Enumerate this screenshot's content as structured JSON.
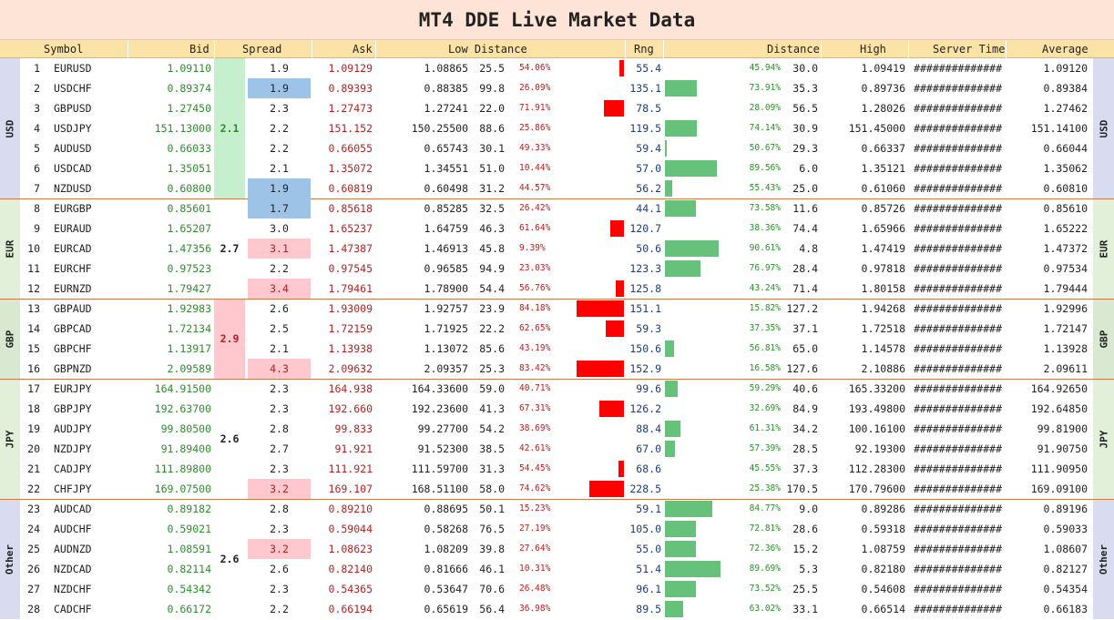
{
  "title": "MT4 DDE Live Market Data",
  "headers": {
    "symbol": "Symbol",
    "bid": "Bid",
    "spread": "Spread",
    "ask": "Ask",
    "low_distance": "Low Distance",
    "rng": "Rng",
    "distance": "Distance",
    "high": "High",
    "server_time": "Server Time",
    "average": "Average"
  },
  "colors": {
    "title_bg": "#fde4d6",
    "header_bg": "#fbe3a7",
    "usd_bg": "#d9dcf1",
    "eur_bg": "#e2f0d9",
    "gbp_bg": "#d9e8d0",
    "jpy_bg": "#e2f0d9",
    "other_bg": "#d9dcf1",
    "spread_green": "#c6efce",
    "spread_blue": "#9dc3e6",
    "spread_pink": "#ffc7ce",
    "bar_red": "#ff0000",
    "bar_green": "#66c27a"
  },
  "groups": [
    {
      "name": "USD",
      "start": 0,
      "count": 7,
      "avg_spread": "2.1",
      "avg_highlight": "green"
    },
    {
      "name": "EUR",
      "start": 7,
      "count": 5,
      "avg_spread": "2.7",
      "avg_highlight": ""
    },
    {
      "name": "GBP",
      "start": 12,
      "count": 4,
      "avg_spread": "2.9",
      "avg_highlight": "pink"
    },
    {
      "name": "JPY",
      "start": 16,
      "count": 6,
      "avg_spread": "2.6",
      "avg_highlight": ""
    },
    {
      "name": "Other",
      "start": 22,
      "count": 6,
      "avg_spread": "2.6",
      "avg_highlight": ""
    }
  ],
  "rows": [
    {
      "n": "1",
      "sym": "EURUSD",
      "bid": "1.09110",
      "spread": "1.9",
      "hl": "",
      "ask": "1.09129",
      "low": "1.08865",
      "ldist": "25.5",
      "lpct": "54.06%",
      "lfrac": 0.1,
      "rng": "55.4",
      "hpct": "45.94%",
      "hfrac": 0,
      "hdist": "30.0",
      "high": "1.09419",
      "time": "##############",
      "avg": "1.09120"
    },
    {
      "n": "2",
      "sym": "USDCHF",
      "bid": "0.89374",
      "spread": "1.9",
      "hl": "blue",
      "ask": "0.89393",
      "low": "0.88385",
      "ldist": "99.8",
      "lpct": "26.09%",
      "lfrac": 0,
      "rng": "135.1",
      "hpct": "73.91%",
      "hfrac": 0.56,
      "hdist": "35.3",
      "high": "0.89736",
      "time": "##############",
      "avg": "0.89384"
    },
    {
      "n": "3",
      "sym": "GBPUSD",
      "bid": "1.27450",
      "spread": "2.3",
      "hl": "",
      "ask": "1.27473",
      "low": "1.27241",
      "ldist": "22.0",
      "lpct": "71.91%",
      "lfrac": 0.42,
      "rng": "78.5",
      "hpct": "28.09%",
      "hfrac": 0,
      "hdist": "56.5",
      "high": "1.28026",
      "time": "##############",
      "avg": "1.27462"
    },
    {
      "n": "4",
      "sym": "USDJPY",
      "bid": "151.13000",
      "spread": "2.2",
      "hl": "",
      "ask": "151.152",
      "low": "150.25500",
      "ldist": "88.6",
      "lpct": "25.86%",
      "lfrac": 0,
      "rng": "119.5",
      "hpct": "74.14%",
      "hfrac": 0.56,
      "hdist": "30.9",
      "high": "151.45000",
      "time": "##############",
      "avg": "151.14100"
    },
    {
      "n": "5",
      "sym": "AUDUSD",
      "bid": "0.66033",
      "spread": "2.2",
      "hl": "",
      "ask": "0.66055",
      "low": "0.65743",
      "ldist": "30.1",
      "lpct": "49.33%",
      "lfrac": 0,
      "rng": "59.4",
      "hpct": "50.67%",
      "hfrac": 0.02,
      "hdist": "29.3",
      "high": "0.66337",
      "time": "##############",
      "avg": "0.66044"
    },
    {
      "n": "6",
      "sym": "USDCAD",
      "bid": "1.35051",
      "spread": "2.1",
      "hl": "",
      "ask": "1.35072",
      "low": "1.34551",
      "ldist": "51.0",
      "lpct": "10.44%",
      "lfrac": 0,
      "rng": "57.0",
      "hpct": "89.56%",
      "hfrac": 0.92,
      "hdist": "6.0",
      "high": "1.35121",
      "time": "##############",
      "avg": "1.35062"
    },
    {
      "n": "7",
      "sym": "NZDUSD",
      "bid": "0.60800",
      "spread": "1.9",
      "hl": "blue",
      "ask": "0.60819",
      "low": "0.60498",
      "ldist": "31.2",
      "lpct": "44.57%",
      "lfrac": 0,
      "rng": "56.2",
      "hpct": "55.43%",
      "hfrac": 0.13,
      "hdist": "25.0",
      "high": "0.61060",
      "time": "##############",
      "avg": "0.60810"
    },
    {
      "n": "8",
      "sym": "EURGBP",
      "bid": "0.85601",
      "spread": "1.7",
      "hl": "blue",
      "ask": "0.85618",
      "low": "0.85285",
      "ldist": "32.5",
      "lpct": "26.42%",
      "lfrac": 0,
      "rng": "44.1",
      "hpct": "73.58%",
      "hfrac": 0.55,
      "hdist": "11.6",
      "high": "0.85726",
      "time": "##############",
      "avg": "0.85610"
    },
    {
      "n": "9",
      "sym": "EURAUD",
      "bid": "1.65207",
      "spread": "3.0",
      "hl": "",
      "ask": "1.65237",
      "low": "1.64759",
      "ldist": "46.3",
      "lpct": "61.64%",
      "lfrac": 0.29,
      "rng": "120.7",
      "hpct": "38.36%",
      "hfrac": 0,
      "hdist": "74.4",
      "high": "1.65966",
      "time": "##############",
      "avg": "1.65222"
    },
    {
      "n": "10",
      "sym": "EURCAD",
      "bid": "1.47356",
      "spread": "3.1",
      "hl": "pink",
      "ask": "1.47387",
      "low": "1.46913",
      "ldist": "45.8",
      "lpct": "9.39%",
      "lfrac": 0,
      "rng": "50.6",
      "hpct": "90.61%",
      "hfrac": 0.95,
      "hdist": "4.8",
      "high": "1.47419",
      "time": "##############",
      "avg": "1.47372"
    },
    {
      "n": "11",
      "sym": "EURCHF",
      "bid": "0.97523",
      "spread": "2.2",
      "hl": "",
      "ask": "0.97545",
      "low": "0.96585",
      "ldist": "94.9",
      "lpct": "23.03%",
      "lfrac": 0,
      "rng": "123.3",
      "hpct": "76.97%",
      "hfrac": 0.63,
      "hdist": "28.4",
      "high": "0.97818",
      "time": "##############",
      "avg": "0.97534"
    },
    {
      "n": "12",
      "sym": "EURNZD",
      "bid": "1.79427",
      "spread": "3.4",
      "hl": "pink",
      "ask": "1.79461",
      "low": "1.78900",
      "ldist": "54.4",
      "lpct": "56.76%",
      "lfrac": 0.17,
      "rng": "125.8",
      "hpct": "43.24%",
      "hfrac": 0,
      "hdist": "71.4",
      "high": "1.80158",
      "time": "##############",
      "avg": "1.79444"
    },
    {
      "n": "13",
      "sym": "GBPAUD",
      "bid": "1.92983",
      "spread": "2.6",
      "hl": "",
      "ask": "1.93009",
      "low": "1.92757",
      "ldist": "23.9",
      "lpct": "84.18%",
      "lfrac": 1.0,
      "rng": "151.1",
      "hpct": "15.82%",
      "hfrac": 0,
      "hdist": "127.2",
      "high": "1.94268",
      "time": "##############",
      "avg": "1.92996"
    },
    {
      "n": "14",
      "sym": "GBPCAD",
      "bid": "1.72134",
      "spread": "2.5",
      "hl": "",
      "ask": "1.72159",
      "low": "1.71925",
      "ldist": "22.2",
      "lpct": "62.65%",
      "lfrac": 0.38,
      "rng": "59.3",
      "hpct": "37.35%",
      "hfrac": 0,
      "hdist": "37.1",
      "high": "1.72518",
      "time": "##############",
      "avg": "1.72147"
    },
    {
      "n": "15",
      "sym": "GBPCHF",
      "bid": "1.13917",
      "spread": "2.1",
      "hl": "",
      "ask": "1.13938",
      "low": "1.13072",
      "ldist": "85.6",
      "lpct": "43.19%",
      "lfrac": 0,
      "rng": "150.6",
      "hpct": "56.81%",
      "hfrac": 0.16,
      "hdist": "65.0",
      "high": "1.14578",
      "time": "##############",
      "avg": "1.13928"
    },
    {
      "n": "16",
      "sym": "GBPNZD",
      "bid": "2.09589",
      "spread": "4.3",
      "hl": "pink",
      "ask": "2.09632",
      "low": "2.09357",
      "ldist": "25.3",
      "lpct": "83.42%",
      "lfrac": 1.0,
      "rng": "152.9",
      "hpct": "16.58%",
      "hfrac": 0,
      "hdist": "127.6",
      "high": "2.10886",
      "time": "##############",
      "avg": "2.09611"
    },
    {
      "n": "17",
      "sym": "EURJPY",
      "bid": "164.91500",
      "spread": "2.3",
      "hl": "",
      "ask": "164.938",
      "low": "164.33600",
      "ldist": "59.0",
      "lpct": "40.71%",
      "lfrac": 0,
      "rng": "99.6",
      "hpct": "59.29%",
      "hfrac": 0.23,
      "hdist": "40.6",
      "high": "165.33200",
      "time": "##############",
      "avg": "164.92650"
    },
    {
      "n": "18",
      "sym": "GBPJPY",
      "bid": "192.63700",
      "spread": "2.3",
      "hl": "",
      "ask": "192.660",
      "low": "192.23600",
      "ldist": "41.3",
      "lpct": "67.31%",
      "lfrac": 0.51,
      "rng": "126.2",
      "hpct": "32.69%",
      "hfrac": 0,
      "hdist": "84.9",
      "high": "193.49800",
      "time": "##############",
      "avg": "192.64850"
    },
    {
      "n": "19",
      "sym": "AUDJPY",
      "bid": "99.80500",
      "spread": "2.8",
      "hl": "",
      "ask": "99.833",
      "low": "99.27700",
      "ldist": "54.2",
      "lpct": "38.69%",
      "lfrac": 0,
      "rng": "88.4",
      "hpct": "61.31%",
      "hfrac": 0.28,
      "hdist": "34.2",
      "high": "100.16100",
      "time": "##############",
      "avg": "99.81900"
    },
    {
      "n": "20",
      "sym": "NZDJPY",
      "bid": "91.89400",
      "spread": "2.7",
      "hl": "",
      "ask": "91.921",
      "low": "91.52300",
      "ldist": "38.5",
      "lpct": "42.61%",
      "lfrac": 0,
      "rng": "67.0",
      "hpct": "57.39%",
      "hfrac": 0.18,
      "hdist": "28.5",
      "high": "92.19300",
      "time": "##############",
      "avg": "91.90750"
    },
    {
      "n": "21",
      "sym": "CADJPY",
      "bid": "111.89800",
      "spread": "2.3",
      "hl": "",
      "ask": "111.921",
      "low": "111.59700",
      "ldist": "31.3",
      "lpct": "54.45%",
      "lfrac": 0.12,
      "rng": "68.6",
      "hpct": "45.55%",
      "hfrac": 0,
      "hdist": "37.3",
      "high": "112.28300",
      "time": "##############",
      "avg": "111.90950"
    },
    {
      "n": "22",
      "sym": "CHFJPY",
      "bid": "169.07500",
      "spread": "3.2",
      "hl": "pink",
      "ask": "169.107",
      "low": "168.51100",
      "ldist": "58.0",
      "lpct": "74.62%",
      "lfrac": 0.74,
      "rng": "228.5",
      "hpct": "25.38%",
      "hfrac": 0,
      "hdist": "170.5",
      "high": "170.79600",
      "time": "##############",
      "avg": "169.09100"
    },
    {
      "n": "23",
      "sym": "AUDCAD",
      "bid": "0.89182",
      "spread": "2.8",
      "hl": "",
      "ask": "0.89210",
      "low": "0.88695",
      "ldist": "50.1",
      "lpct": "15.23%",
      "lfrac": 0,
      "rng": "59.1",
      "hpct": "84.77%",
      "hfrac": 0.84,
      "hdist": "9.0",
      "high": "0.89286",
      "time": "##############",
      "avg": "0.89196"
    },
    {
      "n": "24",
      "sym": "AUDCHF",
      "bid": "0.59021",
      "spread": "2.3",
      "hl": "",
      "ask": "0.59044",
      "low": "0.58268",
      "ldist": "76.5",
      "lpct": "27.19%",
      "lfrac": 0,
      "rng": "105.0",
      "hpct": "72.81%",
      "hfrac": 0.55,
      "hdist": "28.6",
      "high": "0.59318",
      "time": "##############",
      "avg": "0.59033"
    },
    {
      "n": "25",
      "sym": "AUDNZD",
      "bid": "1.08591",
      "spread": "3.2",
      "hl": "pink",
      "ask": "1.08623",
      "low": "1.08209",
      "ldist": "39.8",
      "lpct": "27.64%",
      "lfrac": 0,
      "rng": "55.0",
      "hpct": "72.36%",
      "hfrac": 0.55,
      "hdist": "15.2",
      "high": "1.08759",
      "time": "##############",
      "avg": "1.08607"
    },
    {
      "n": "26",
      "sym": "NZDCAD",
      "bid": "0.82114",
      "spread": "2.6",
      "hl": "",
      "ask": "0.82140",
      "low": "0.81666",
      "ldist": "46.1",
      "lpct": "10.31%",
      "lfrac": 0,
      "rng": "51.4",
      "hpct": "89.69%",
      "hfrac": 0.98,
      "hdist": "5.3",
      "high": "0.82180",
      "time": "##############",
      "avg": "0.82127"
    },
    {
      "n": "27",
      "sym": "NZDCHF",
      "bid": "0.54342",
      "spread": "2.3",
      "hl": "",
      "ask": "0.54365",
      "low": "0.53647",
      "ldist": "70.6",
      "lpct": "26.48%",
      "lfrac": 0,
      "rng": "96.1",
      "hpct": "73.52%",
      "hfrac": 0.55,
      "hdist": "25.5",
      "high": "0.54608",
      "time": "##############",
      "avg": "0.54354"
    },
    {
      "n": "28",
      "sym": "CADCHF",
      "bid": "0.66172",
      "spread": "2.2",
      "hl": "",
      "ask": "0.66194",
      "low": "0.65619",
      "ldist": "56.4",
      "lpct": "36.98%",
      "lfrac": 0,
      "rng": "89.5",
      "hpct": "63.02%",
      "hfrac": 0.33,
      "hdist": "33.1",
      "high": "0.66514",
      "time": "##############",
      "avg": "0.66183"
    }
  ]
}
